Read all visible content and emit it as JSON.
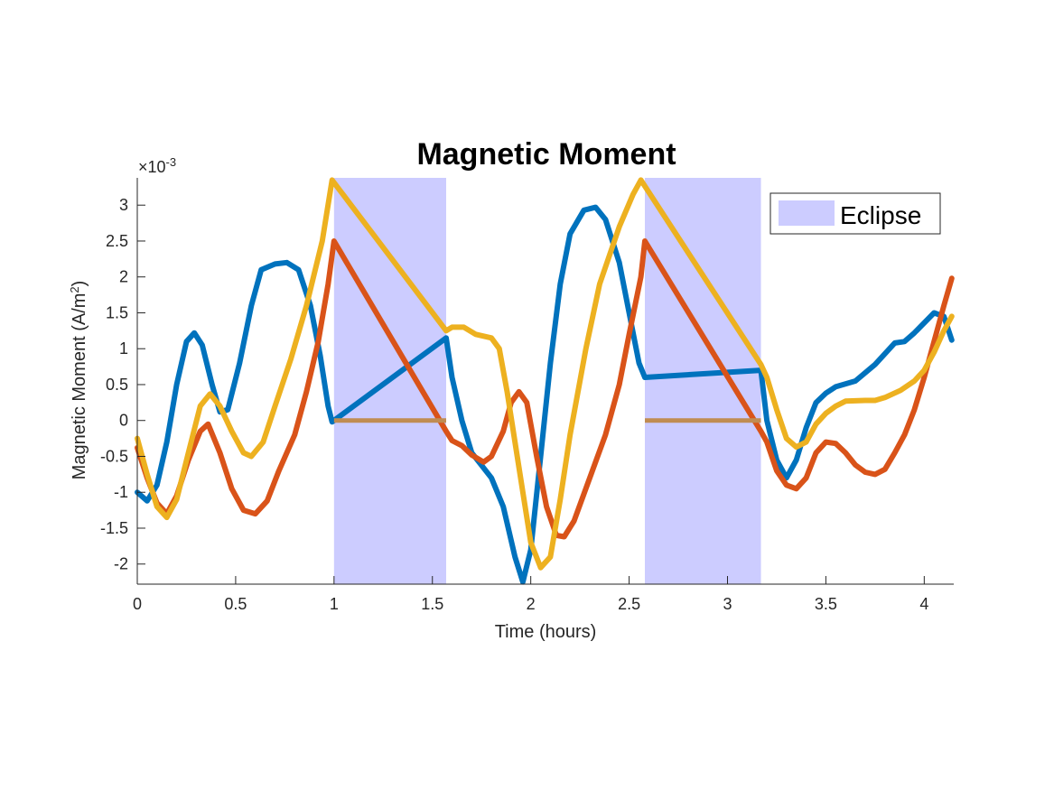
{
  "chart_data": {
    "type": "line",
    "title": "Magnetic Moment",
    "xlabel": "Time (hours)",
    "ylabel": {
      "main": "Magnetic Moment (A/m",
      "sup": "2",
      "close": ")"
    },
    "exponent": {
      "prefix": "×10",
      "power": "-3"
    },
    "xlim": [
      0,
      4.15
    ],
    "ylim": [
      -2.28,
      3.38
    ],
    "xticks": [
      0,
      0.5,
      1,
      1.5,
      2,
      2.5,
      3,
      3.5,
      4
    ],
    "xtick_labels": [
      "0",
      "0.5",
      "1",
      "1.5",
      "2",
      "2.5",
      "3",
      "3.5",
      "4"
    ],
    "yticks": [
      -2,
      -1.5,
      -1,
      -0.5,
      0,
      0.5,
      1,
      1.5,
      2,
      2.5,
      3
    ],
    "ytick_labels": [
      "-2",
      "-1.5",
      "-1",
      "-0.5",
      "0",
      "0.5",
      "1",
      "1.5",
      "2",
      "2.5",
      "3"
    ],
    "legend": {
      "label": "Eclipse",
      "location": "top-right",
      "color": "#ccccff"
    },
    "eclipse_intervals": [
      [
        1.0,
        1.57
      ],
      [
        2.58,
        3.17
      ]
    ],
    "grid": false,
    "series": [
      {
        "color": "#0072BD",
        "points": [
          [
            0,
            -1.0
          ],
          [
            0.05,
            -1.12
          ],
          [
            0.1,
            -0.9
          ],
          [
            0.15,
            -0.3
          ],
          [
            0.2,
            0.5
          ],
          [
            0.25,
            1.1
          ],
          [
            0.29,
            1.22
          ],
          [
            0.33,
            1.05
          ],
          [
            0.38,
            0.5
          ],
          [
            0.42,
            0.12
          ],
          [
            0.46,
            0.15
          ],
          [
            0.52,
            0.8
          ],
          [
            0.58,
            1.6
          ],
          [
            0.63,
            2.1
          ],
          [
            0.7,
            2.18
          ],
          [
            0.76,
            2.2
          ],
          [
            0.82,
            2.1
          ],
          [
            0.88,
            1.6
          ],
          [
            0.93,
            0.9
          ],
          [
            0.97,
            0.2
          ],
          [
            0.99,
            -0.02
          ],
          [
            1.57,
            1.15
          ],
          [
            1.6,
            0.6
          ],
          [
            1.65,
            0.0
          ],
          [
            1.7,
            -0.45
          ],
          [
            1.8,
            -0.8
          ],
          [
            1.86,
            -1.2
          ],
          [
            1.92,
            -1.9
          ],
          [
            1.96,
            -2.25
          ],
          [
            2.0,
            -1.8
          ],
          [
            2.05,
            -0.5
          ],
          [
            2.1,
            0.8
          ],
          [
            2.15,
            1.9
          ],
          [
            2.2,
            2.6
          ],
          [
            2.27,
            2.93
          ],
          [
            2.33,
            2.97
          ],
          [
            2.38,
            2.8
          ],
          [
            2.45,
            2.2
          ],
          [
            2.5,
            1.5
          ],
          [
            2.55,
            0.8
          ],
          [
            2.58,
            0.6
          ],
          [
            3.17,
            0.7
          ],
          [
            3.2,
            0.0
          ],
          [
            3.25,
            -0.55
          ],
          [
            3.3,
            -0.8
          ],
          [
            3.35,
            -0.55
          ],
          [
            3.4,
            -0.1
          ],
          [
            3.45,
            0.25
          ],
          [
            3.5,
            0.38
          ],
          [
            3.55,
            0.47
          ],
          [
            3.65,
            0.55
          ],
          [
            3.75,
            0.78
          ],
          [
            3.85,
            1.08
          ],
          [
            3.9,
            1.1
          ],
          [
            3.95,
            1.22
          ],
          [
            4.05,
            1.5
          ],
          [
            4.1,
            1.45
          ],
          [
            4.14,
            1.12
          ]
        ]
      },
      {
        "color": "#D95319",
        "points": [
          [
            0,
            -0.38
          ],
          [
            0.05,
            -0.8
          ],
          [
            0.1,
            -1.15
          ],
          [
            0.15,
            -1.3
          ],
          [
            0.2,
            -1.05
          ],
          [
            0.26,
            -0.55
          ],
          [
            0.32,
            -0.15
          ],
          [
            0.36,
            -0.05
          ],
          [
            0.42,
            -0.45
          ],
          [
            0.48,
            -0.95
          ],
          [
            0.54,
            -1.25
          ],
          [
            0.6,
            -1.3
          ],
          [
            0.66,
            -1.12
          ],
          [
            0.72,
            -0.7
          ],
          [
            0.8,
            -0.2
          ],
          [
            0.86,
            0.4
          ],
          [
            0.92,
            1.1
          ],
          [
            0.97,
            1.9
          ],
          [
            1.0,
            2.5
          ],
          [
            1.57,
            -0.15
          ],
          [
            1.6,
            -0.28
          ],
          [
            1.65,
            -0.35
          ],
          [
            1.7,
            -0.48
          ],
          [
            1.76,
            -0.58
          ],
          [
            1.8,
            -0.5
          ],
          [
            1.86,
            -0.15
          ],
          [
            1.9,
            0.25
          ],
          [
            1.94,
            0.4
          ],
          [
            1.98,
            0.25
          ],
          [
            2.03,
            -0.5
          ],
          [
            2.08,
            -1.2
          ],
          [
            2.13,
            -1.6
          ],
          [
            2.17,
            -1.62
          ],
          [
            2.22,
            -1.4
          ],
          [
            2.3,
            -0.8
          ],
          [
            2.38,
            -0.2
          ],
          [
            2.45,
            0.5
          ],
          [
            2.5,
            1.2
          ],
          [
            2.56,
            2.0
          ],
          [
            2.58,
            2.5
          ],
          [
            3.17,
            -0.15
          ],
          [
            3.2,
            -0.3
          ],
          [
            3.25,
            -0.7
          ],
          [
            3.3,
            -0.9
          ],
          [
            3.35,
            -0.95
          ],
          [
            3.4,
            -0.8
          ],
          [
            3.45,
            -0.45
          ],
          [
            3.5,
            -0.3
          ],
          [
            3.55,
            -0.32
          ],
          [
            3.6,
            -0.45
          ],
          [
            3.65,
            -0.62
          ],
          [
            3.7,
            -0.72
          ],
          [
            3.75,
            -0.75
          ],
          [
            3.8,
            -0.68
          ],
          [
            3.85,
            -0.45
          ],
          [
            3.9,
            -0.2
          ],
          [
            3.95,
            0.15
          ],
          [
            4.0,
            0.6
          ],
          [
            4.05,
            1.1
          ],
          [
            4.1,
            1.6
          ],
          [
            4.14,
            1.98
          ]
        ]
      },
      {
        "color": "#EDB120",
        "points": [
          [
            0,
            -0.25
          ],
          [
            0.05,
            -0.75
          ],
          [
            0.1,
            -1.2
          ],
          [
            0.15,
            -1.35
          ],
          [
            0.2,
            -1.1
          ],
          [
            0.26,
            -0.45
          ],
          [
            0.32,
            0.2
          ],
          [
            0.37,
            0.37
          ],
          [
            0.42,
            0.2
          ],
          [
            0.48,
            -0.15
          ],
          [
            0.54,
            -0.45
          ],
          [
            0.58,
            -0.5
          ],
          [
            0.64,
            -0.3
          ],
          [
            0.7,
            0.2
          ],
          [
            0.78,
            0.85
          ],
          [
            0.86,
            1.6
          ],
          [
            0.94,
            2.5
          ],
          [
            0.99,
            3.35
          ],
          [
            1.57,
            1.25
          ],
          [
            1.6,
            1.3
          ],
          [
            1.66,
            1.3
          ],
          [
            1.72,
            1.2
          ],
          [
            1.8,
            1.15
          ],
          [
            1.84,
            1.0
          ],
          [
            1.88,
            0.4
          ],
          [
            1.92,
            -0.3
          ],
          [
            1.96,
            -1.0
          ],
          [
            2.0,
            -1.7
          ],
          [
            2.05,
            -2.05
          ],
          [
            2.1,
            -1.9
          ],
          [
            2.15,
            -1.1
          ],
          [
            2.2,
            -0.2
          ],
          [
            2.28,
            1.0
          ],
          [
            2.35,
            1.9
          ],
          [
            2.45,
            2.7
          ],
          [
            2.52,
            3.15
          ],
          [
            2.56,
            3.35
          ],
          [
            3.17,
            0.78
          ],
          [
            3.2,
            0.6
          ],
          [
            3.25,
            0.15
          ],
          [
            3.3,
            -0.25
          ],
          [
            3.35,
            -0.37
          ],
          [
            3.4,
            -0.3
          ],
          [
            3.45,
            -0.05
          ],
          [
            3.5,
            0.1
          ],
          [
            3.55,
            0.2
          ],
          [
            3.6,
            0.27
          ],
          [
            3.7,
            0.28
          ],
          [
            3.75,
            0.28
          ],
          [
            3.8,
            0.32
          ],
          [
            3.88,
            0.42
          ],
          [
            3.95,
            0.55
          ],
          [
            4.0,
            0.7
          ],
          [
            4.05,
            0.95
          ],
          [
            4.1,
            1.25
          ],
          [
            4.14,
            1.45
          ]
        ]
      }
    ],
    "eclipse_line_color": "#C08C52"
  }
}
